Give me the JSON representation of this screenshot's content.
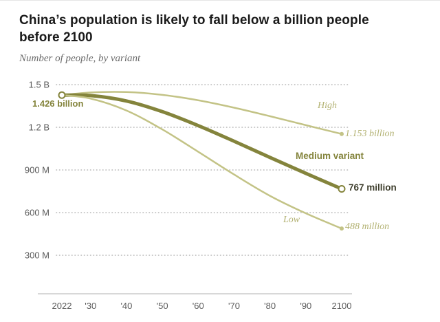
{
  "title": "China’s population is likely to fall below a billion people before 2100",
  "subtitle": "Number of people, by variant",
  "colors": {
    "medium_line": "#84843c",
    "light_line": "#c3c386",
    "label_light": "#b3b273",
    "label_dark": "#84843c",
    "label_end_dark": "#3f3f2e",
    "grid": "#b5b5b5",
    "tick_text": "#5a5a5a",
    "axis_line": "#cccccc",
    "marker_fill": "#ffffff"
  },
  "chart_data": {
    "type": "line",
    "title": "China’s population is likely to fall below a billion people before 2100",
    "subtitle": "Number of people, by variant",
    "unit": "millions of people",
    "x": [
      2022,
      2030,
      2040,
      2050,
      2060,
      2070,
      2080,
      2090,
      2100
    ],
    "x_tick_labels": [
      "2022",
      "'30",
      "'40",
      "'50",
      "'60",
      "'70",
      "'80",
      "'90",
      "2100"
    ],
    "y_ticks": [
      {
        "value": 1500,
        "label": "1.5 B"
      },
      {
        "value": 1200,
        "label": "1.2 B"
      },
      {
        "value": 900,
        "label": "900 M"
      },
      {
        "value": 600,
        "label": "600 M"
      },
      {
        "value": 300,
        "label": "300 M"
      }
    ],
    "ylim": [
      300,
      1500
    ],
    "grid": "dotted-horizontal",
    "series": [
      {
        "name": "High",
        "color": "light_line",
        "width": 2.5,
        "values": [
          1426,
          1445,
          1448,
          1428,
          1390,
          1338,
          1278,
          1215,
          1153
        ]
      },
      {
        "name": "Medium variant",
        "color": "medium_line",
        "width": 5,
        "values": [
          1426,
          1423,
          1385,
          1310,
          1212,
          1102,
          988,
          876,
          767
        ]
      },
      {
        "name": "Low",
        "color": "light_line",
        "width": 2.5,
        "values": [
          1426,
          1402,
          1318,
          1185,
          1028,
          868,
          718,
          595,
          488
        ]
      }
    ],
    "markers": [
      {
        "year": 2022,
        "value": 1426,
        "style": "open-dark"
      },
      {
        "year": 2100,
        "value": 767,
        "style": "open-dark"
      },
      {
        "year": 2100,
        "value": 1153,
        "style": "dot-light"
      },
      {
        "year": 2100,
        "value": 488,
        "style": "dot-light"
      }
    ],
    "annotations": {
      "start": "1.426 billion",
      "high": "High",
      "high_end": "1.153 billion",
      "medium": "Medium variant",
      "medium_end": "767 million",
      "low": "Low",
      "low_end": "488 million"
    }
  }
}
